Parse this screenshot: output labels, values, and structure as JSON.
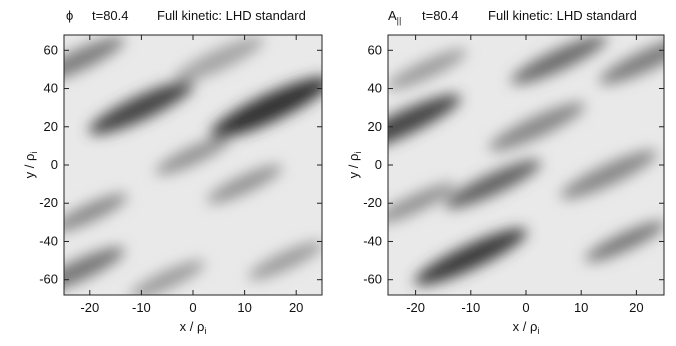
{
  "chart_data": [
    {
      "type": "heatmap",
      "quantity_symbol": "ϕ",
      "time_label": "t=80.4",
      "title": "Full kinetic: LHD standard",
      "xlabel": "x / ρ",
      "xlabel_sub": "i",
      "ylabel": "y / ρ",
      "ylabel_sub": "i",
      "xlim": [
        -25,
        25
      ],
      "ylim": [
        -68,
        68
      ],
      "xticks": [
        -20,
        -10,
        0,
        10,
        20
      ],
      "yticks": [
        -60,
        -40,
        -20,
        0,
        20,
        40,
        60
      ],
      "colormap": "grayscale (dark = extremum, light = near zero)",
      "features": [
        {
          "x": -10,
          "y": 30,
          "r": 7,
          "intensity": 0.85
        },
        {
          "x": 15,
          "y": 30,
          "r": 8,
          "intensity": 0.95
        },
        {
          "x": -22,
          "y": 55,
          "r": 6,
          "intensity": 0.55
        },
        {
          "x": -20,
          "y": -25,
          "r": 5,
          "intensity": 0.5
        },
        {
          "x": -22,
          "y": -55,
          "r": 6,
          "intensity": 0.6
        },
        {
          "x": 0,
          "y": 5,
          "r": 5,
          "intensity": 0.45
        },
        {
          "x": 10,
          "y": -10,
          "r": 5,
          "intensity": 0.45
        },
        {
          "x": 18,
          "y": -50,
          "r": 5,
          "intensity": 0.4
        },
        {
          "x": 5,
          "y": 55,
          "r": 6,
          "intensity": 0.35
        },
        {
          "x": -5,
          "y": -60,
          "r": 5,
          "intensity": 0.4
        }
      ]
    },
    {
      "type": "heatmap",
      "quantity_symbol": "A",
      "quantity_sub": "||",
      "time_label": "t=80.4",
      "title": "Full kinetic: LHD standard",
      "xlabel": "x / ρ",
      "xlabel_sub": "i",
      "ylabel": "y / ρ",
      "ylabel_sub": "i",
      "xlim": [
        -25,
        25
      ],
      "ylim": [
        -68,
        68
      ],
      "xticks": [
        -20,
        -10,
        0,
        10,
        20
      ],
      "yticks": [
        -60,
        -40,
        -20,
        0,
        20,
        40,
        60
      ],
      "colormap": "grayscale (dark = extremum, light = near zero)",
      "features": [
        {
          "x": -22,
          "y": 22,
          "r": 7,
          "intensity": 0.85
        },
        {
          "x": -10,
          "y": -48,
          "r": 7,
          "intensity": 0.9
        },
        {
          "x": -6,
          "y": -10,
          "r": 6,
          "intensity": 0.7
        },
        {
          "x": 6,
          "y": 55,
          "r": 6,
          "intensity": 0.65
        },
        {
          "x": 22,
          "y": 55,
          "r": 6,
          "intensity": 0.55
        },
        {
          "x": 15,
          "y": -5,
          "r": 6,
          "intensity": 0.5
        },
        {
          "x": 18,
          "y": -40,
          "r": 5,
          "intensity": 0.6
        },
        {
          "x": -18,
          "y": 50,
          "r": 5,
          "intensity": 0.4
        },
        {
          "x": 2,
          "y": 20,
          "r": 6,
          "intensity": 0.5
        },
        {
          "x": -20,
          "y": -20,
          "r": 5,
          "intensity": 0.45
        }
      ]
    }
  ]
}
